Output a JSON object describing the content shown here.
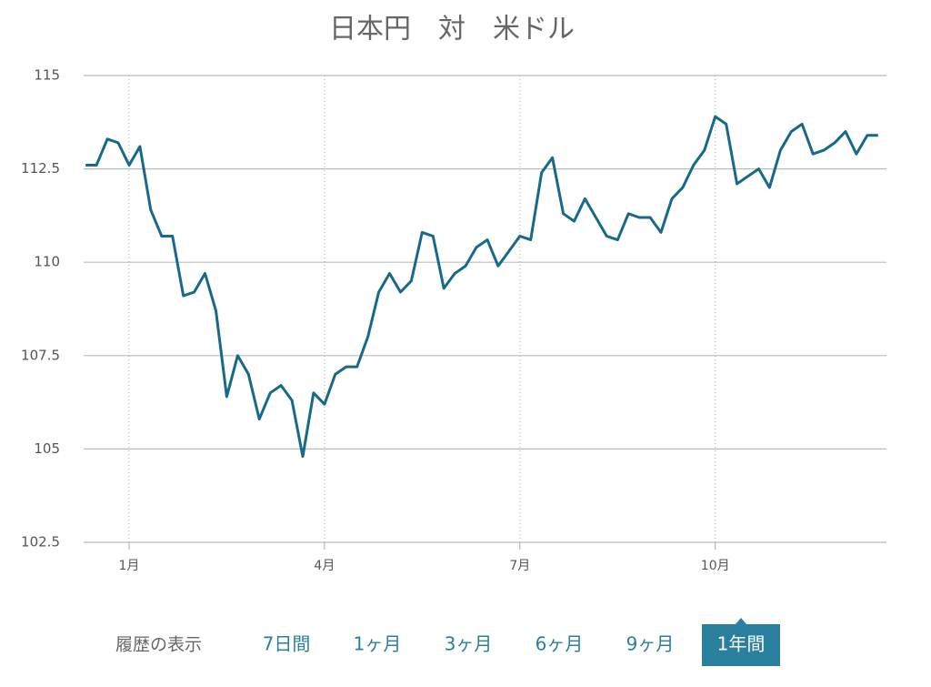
{
  "chart_data": {
    "type": "line",
    "title": "日本円　対　米ドル",
    "categories": [
      null,
      null,
      null,
      null,
      "1月",
      null,
      null,
      null,
      null,
      null,
      null,
      null,
      null,
      null,
      null,
      null,
      null,
      null,
      null,
      null,
      null,
      null,
      "4月",
      null,
      null,
      null,
      null,
      null,
      null,
      null,
      null,
      null,
      null,
      null,
      null,
      null,
      null,
      null,
      null,
      null,
      "7月",
      null,
      null,
      null,
      null,
      null,
      null,
      null,
      null,
      null,
      null,
      null,
      null,
      null,
      null,
      null,
      null,
      null,
      "10月",
      null,
      null,
      null,
      null,
      null,
      null,
      null,
      null,
      null,
      null,
      null,
      null,
      null,
      null,
      null
    ],
    "values": [
      112.6,
      112.6,
      113.3,
      113.2,
      112.6,
      113.1,
      111.4,
      110.7,
      110.7,
      109.1,
      109.2,
      109.7,
      108.7,
      106.4,
      107.5,
      107.0,
      105.8,
      106.5,
      106.7,
      106.3,
      104.8,
      106.5,
      106.2,
      107.0,
      107.2,
      107.2,
      108.0,
      109.2,
      109.7,
      109.2,
      109.5,
      110.8,
      110.7,
      109.3,
      109.7,
      109.9,
      110.4,
      110.6,
      109.9,
      110.3,
      110.7,
      110.6,
      112.4,
      112.8,
      111.3,
      111.1,
      111.7,
      111.2,
      110.7,
      110.6,
      111.3,
      111.2,
      111.2,
      110.8,
      111.7,
      112.0,
      112.6,
      113.0,
      113.9,
      113.7,
      112.1,
      112.3,
      112.5,
      112.0,
      113.0,
      113.5,
      113.7,
      112.9,
      113.0,
      113.2,
      113.5,
      112.9,
      113.4,
      113.4
    ],
    "color": "#17698c",
    "ylim": [
      102.5,
      115
    ],
    "yticks": [
      {
        "value": 102.5,
        "label": "102.5"
      },
      105,
      {
        "value": 107.5,
        "label": "107.5"
      },
      110,
      {
        "value": 112.5,
        "label": "112.5"
      },
      115
    ],
    "grid": true
  },
  "controls": {
    "label": "履歴の表示",
    "options": [
      "7日間",
      "1ヶ月",
      "3ヶ月",
      "6ヶ月",
      "9ヶ月",
      "1年間"
    ],
    "selected": 5
  }
}
